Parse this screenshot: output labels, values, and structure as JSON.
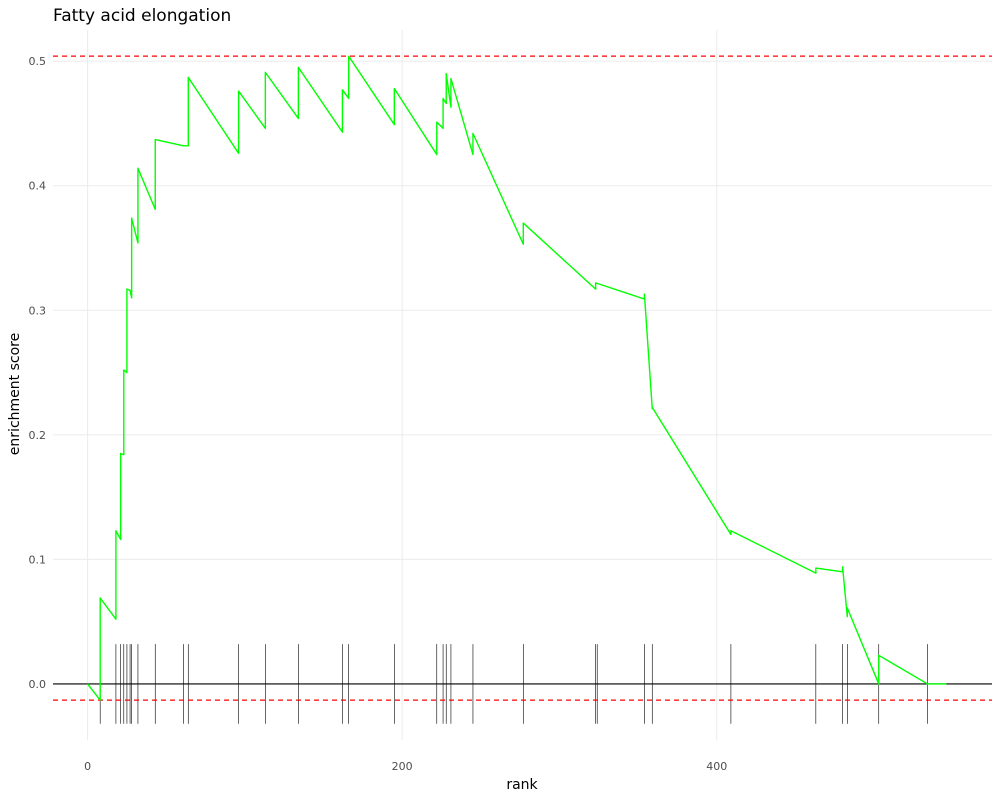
{
  "chart_data": {
    "type": "line",
    "title": "Fatty acid elongation",
    "xlabel": "rank",
    "ylabel": "enrichment score",
    "xlim": [
      -22,
      575
    ],
    "ylim": [
      -0.045,
      0.525
    ],
    "x_ticks": [
      0,
      200,
      400
    ],
    "x_tick_labels": [
      "0",
      "200",
      "400"
    ],
    "y_ticks": [
      0.0,
      0.1,
      0.2,
      0.3,
      0.4,
      0.5
    ],
    "y_tick_labels": [
      "0.0",
      "0.1",
      "0.2",
      "0.3",
      "0.4",
      "0.5"
    ],
    "grid": true,
    "series": [
      {
        "color": "#00ff00",
        "x": [
          0,
          8,
          8,
          18,
          18,
          21,
          21,
          23,
          23,
          25,
          25,
          27,
          27,
          28,
          28,
          32,
          32,
          43,
          43,
          61,
          61,
          64,
          64,
          96,
          96,
          113,
          113,
          134,
          134,
          162,
          162,
          166,
          166,
          195,
          195,
          222,
          222,
          226,
          226,
          228,
          228,
          231,
          231,
          245,
          245,
          277,
          277,
          323,
          323,
          354,
          354,
          359,
          359,
          409,
          409,
          463,
          463,
          480,
          480,
          483,
          483,
          503,
          503,
          534,
          534,
          546
        ],
        "y": [
          0.0,
          -0.013,
          0.069,
          0.052,
          0.123,
          0.116,
          0.185,
          0.184,
          0.252,
          0.25,
          0.317,
          0.316,
          0.316,
          0.31,
          0.374,
          0.354,
          0.414,
          0.381,
          0.437,
          0.432,
          0.432,
          0.432,
          0.487,
          0.426,
          0.476,
          0.446,
          0.491,
          0.454,
          0.495,
          0.443,
          0.477,
          0.47,
          0.504,
          0.449,
          0.478,
          0.425,
          0.451,
          0.446,
          0.47,
          0.466,
          0.49,
          0.463,
          0.486,
          0.425,
          0.442,
          0.353,
          0.37,
          0.317,
          0.322,
          0.309,
          0.313,
          0.221,
          0.222,
          0.12,
          0.123,
          0.089,
          0.093,
          0.09,
          0.094,
          0.054,
          0.061,
          0.0,
          0.023,
          0.0,
          0.0,
          0.0
        ]
      }
    ],
    "hlines": [
      {
        "y": 0.0,
        "color": "#000000",
        "style": "solid"
      },
      {
        "y": 0.504,
        "color": "#ff0000",
        "style": "dashed"
      },
      {
        "y": -0.013,
        "color": "#ff0000",
        "style": "dashed"
      }
    ],
    "rug": {
      "color": "#000000",
      "positions": [
        8,
        18,
        21,
        23,
        25,
        27,
        28,
        32,
        43,
        61,
        64,
        96,
        113,
        134,
        162,
        166,
        195,
        222,
        226,
        228,
        231,
        245,
        277,
        323,
        324,
        354,
        359,
        409,
        463,
        480,
        483,
        503,
        534
      ],
      "y_range": [
        -0.032,
        0.032
      ]
    }
  }
}
